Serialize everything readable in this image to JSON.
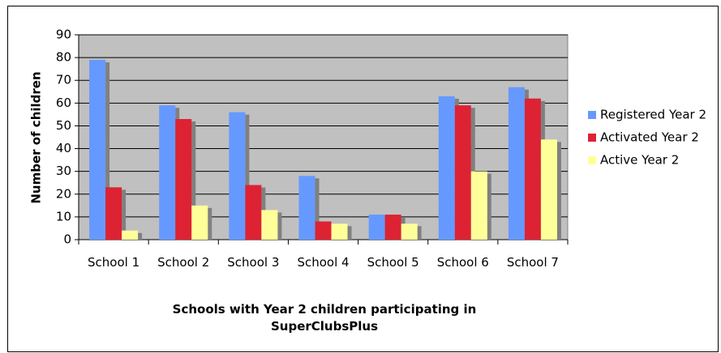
{
  "chart_data": {
    "type": "bar",
    "x_label": "Schools with Year 2 children participating in SuperClubsPlus",
    "y_label": "Number of children",
    "categories": [
      "School 1",
      "School 2",
      "School 3",
      "School 4",
      "School 5",
      "School 6",
      "School 7"
    ],
    "series": [
      {
        "name": "Registered Year 2",
        "color": "#6699ff",
        "values": [
          79,
          59,
          56,
          28,
          11,
          63,
          67
        ]
      },
      {
        "name": "Activated Year 2",
        "color": "#dd2233",
        "values": [
          23,
          53,
          24,
          8,
          11,
          59,
          62
        ]
      },
      {
        "name": "Active Year 2",
        "color": "#ffff99",
        "values": [
          4,
          15,
          13,
          7,
          7,
          30,
          44
        ]
      }
    ],
    "ylim": [
      0,
      90
    ],
    "yticks": [
      0,
      10,
      20,
      30,
      40,
      50,
      60,
      70,
      80,
      90
    ],
    "grid": true,
    "legend": "right"
  }
}
